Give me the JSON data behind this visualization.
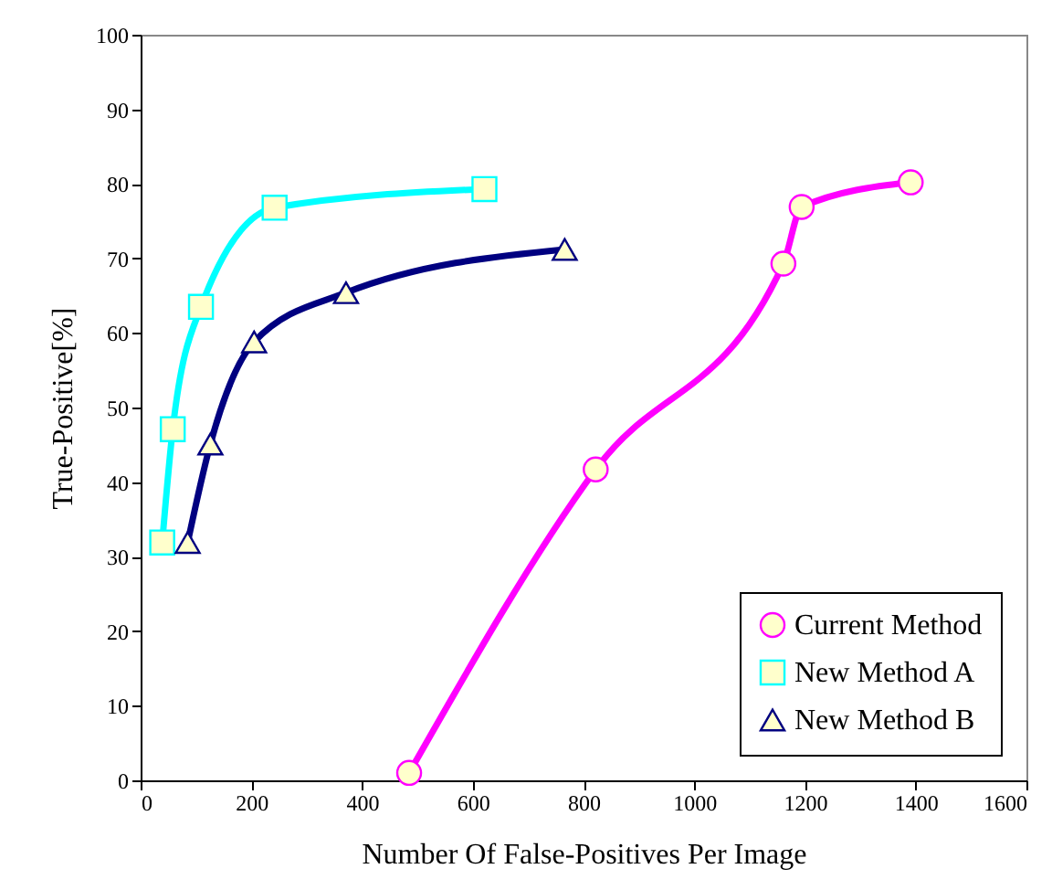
{
  "chart_data": {
    "type": "line",
    "xlabel": "Number Of False-Positives Per Image",
    "ylabel": "True-Positive[%]",
    "xlim": [
      0,
      1600
    ],
    "xticks": [
      0,
      200,
      400,
      600,
      800,
      1000,
      1200,
      1400,
      1600
    ],
    "ylim": [
      0,
      100
    ],
    "yticks": [
      0,
      10,
      20,
      30,
      40,
      50,
      60,
      70,
      80,
      90,
      100
    ],
    "grid": false,
    "legend": "bottom right",
    "series": [
      {
        "name": "Current Method",
        "color": "#ff00ff",
        "marker": "circle",
        "x": [
          485,
          822,
          1161,
          1194,
          1391
        ],
        "values": [
          1,
          41.7,
          69.3,
          76.9,
          80.2
        ]
      },
      {
        "name": "New Method A",
        "color": "#00ffff",
        "marker": "square",
        "x": [
          39,
          58,
          109,
          242,
          621
        ],
        "values": [
          31.9,
          47.1,
          63.5,
          76.8,
          79.3
        ]
      },
      {
        "name": "New Method B",
        "color": "#000080",
        "marker": "triangle",
        "x": [
          85,
          126,
          205,
          371,
          766
        ],
        "values": [
          31.9,
          45.1,
          58.8,
          65.4,
          71.2
        ]
      }
    ]
  }
}
